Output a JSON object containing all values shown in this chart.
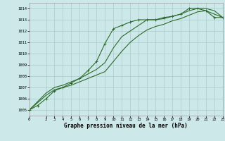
{
  "xlabel": "Graphe pression niveau de la mer (hPa)",
  "bg_color": "#cce8e8",
  "grid_color": "#aacccc",
  "line_color": "#2d6a2d",
  "xlim": [
    0,
    23
  ],
  "ylim": [
    1004.5,
    1014.5
  ],
  "yticks": [
    1005,
    1006,
    1007,
    1008,
    1009,
    1010,
    1011,
    1012,
    1013,
    1014
  ],
  "xticks": [
    0,
    2,
    3,
    4,
    5,
    6,
    7,
    8,
    9,
    10,
    11,
    12,
    13,
    14,
    15,
    16,
    17,
    18,
    19,
    20,
    21,
    22,
    23
  ],
  "line1_x": [
    0,
    2,
    3,
    4,
    5,
    6,
    7,
    8,
    9,
    10,
    11,
    12,
    13,
    14,
    15,
    16,
    17,
    18,
    19,
    20,
    21,
    22,
    23
  ],
  "line1_y": [
    1005.0,
    1006.5,
    1007.0,
    1007.2,
    1007.5,
    1007.8,
    1008.2,
    1008.6,
    1009.2,
    1010.5,
    1011.5,
    1012.0,
    1012.5,
    1013.0,
    1013.0,
    1013.1,
    1013.3,
    1013.5,
    1013.8,
    1014.0,
    1014.0,
    1013.8,
    1013.2
  ],
  "line2_x": [
    0,
    1,
    2,
    3,
    4,
    5,
    6,
    7,
    8,
    9,
    10,
    11,
    12,
    13,
    14,
    15,
    16,
    17,
    18,
    19,
    20,
    21,
    22,
    23
  ],
  "line2_y": [
    1005.0,
    1005.4,
    1006.0,
    1006.7,
    1007.0,
    1007.4,
    1007.8,
    1008.5,
    1009.3,
    1010.9,
    1012.2,
    1012.5,
    1012.8,
    1013.0,
    1013.0,
    1013.0,
    1013.2,
    1013.3,
    1013.5,
    1014.0,
    1014.0,
    1013.8,
    1013.2,
    1013.2
  ],
  "line3_x": [
    0,
    2,
    3,
    4,
    5,
    6,
    7,
    8,
    9,
    10,
    11,
    12,
    13,
    14,
    15,
    16,
    17,
    18,
    19,
    20,
    21,
    22,
    23
  ],
  "line3_y": [
    1005.0,
    1006.3,
    1006.8,
    1007.0,
    1007.2,
    1007.5,
    1007.8,
    1008.1,
    1008.4,
    1009.3,
    1010.2,
    1011.0,
    1011.6,
    1012.1,
    1012.4,
    1012.6,
    1012.9,
    1013.1,
    1013.4,
    1013.7,
    1013.8,
    1013.5,
    1013.2
  ]
}
